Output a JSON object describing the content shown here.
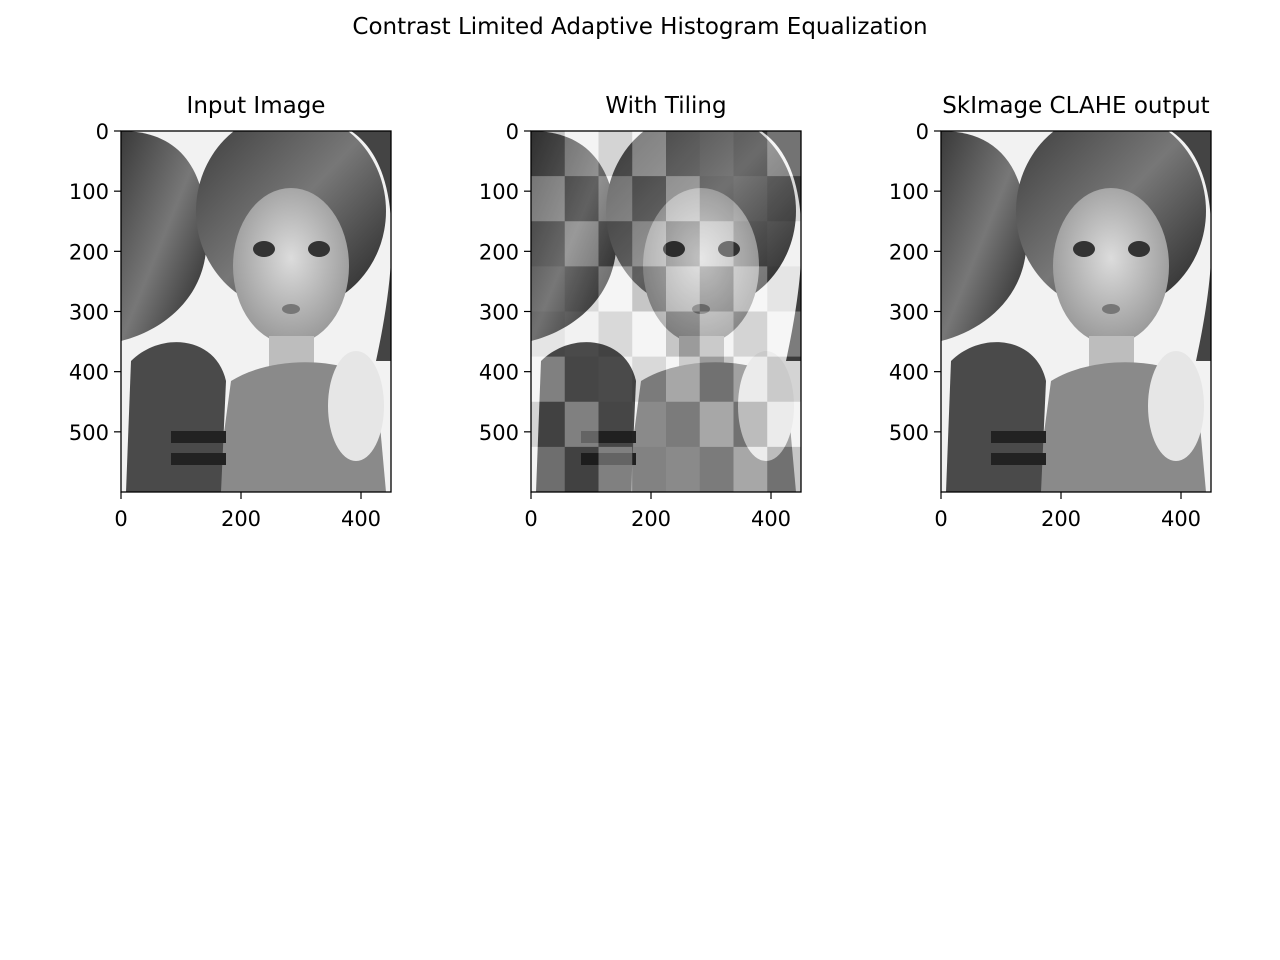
{
  "figure": {
    "suptitle": "Contrast Limited Adaptive Histogram Equalization"
  },
  "colors": {
    "background": "#ffffff",
    "axis": "#000000",
    "image_light": "#f2f2f2",
    "image_dark": "#2a2a2a"
  },
  "chart_data": [
    {
      "type": "image",
      "title": "Input Image",
      "xlim": [
        0,
        450
      ],
      "ylim": [
        600,
        0
      ],
      "xticks": [
        0,
        200,
        400
      ],
      "yticks": [
        0,
        100,
        200,
        300,
        400,
        500
      ],
      "tiled": false,
      "image_description_icon": "grayscale-portrait-icon"
    },
    {
      "type": "image",
      "title": "With Tiling",
      "xlim": [
        0,
        450
      ],
      "ylim": [
        600,
        0
      ],
      "xticks": [
        0,
        200,
        400
      ],
      "yticks": [
        0,
        100,
        200,
        300,
        400,
        500
      ],
      "tiled": true,
      "image_description_icon": "grayscale-portrait-icon"
    },
    {
      "type": "image",
      "title": "SkImage CLAHE output",
      "xlim": [
        0,
        450
      ],
      "ylim": [
        600,
        0
      ],
      "xticks": [
        0,
        200,
        400
      ],
      "yticks": [
        0,
        100,
        200,
        300,
        400,
        500
      ],
      "tiled": false,
      "image_description_icon": "grayscale-portrait-icon"
    }
  ]
}
